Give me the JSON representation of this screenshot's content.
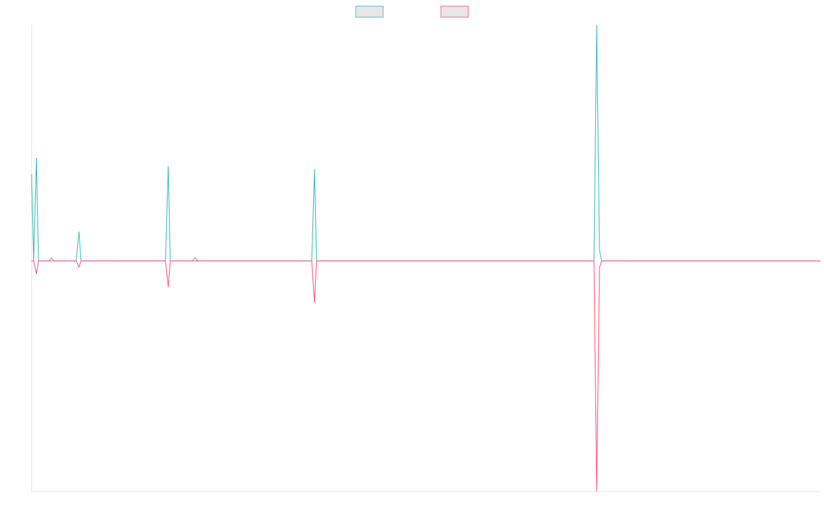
{
  "chart_data": {
    "type": "line",
    "x": [
      0,
      3,
      7,
      10,
      25,
      29,
      33,
      65,
      69,
      72,
      195,
      199,
      202,
      234,
      238,
      242,
      408,
      412,
      415,
      819,
      823,
      827,
      830,
      1149
    ],
    "series": [
      {
        "color": "#4bc0c0",
        "values": [
          126,
          0,
          150,
          0,
          0,
          4,
          0,
          0,
          43,
          0,
          0,
          138,
          0,
          0,
          5,
          0,
          0,
          134,
          0,
          0,
          344,
          17,
          0,
          0
        ]
      },
      {
        "color": "#ff6384",
        "values": [
          0,
          0,
          -19,
          0,
          0,
          0,
          0,
          0,
          -9,
          0,
          0,
          -38,
          0,
          0,
          0,
          0,
          0,
          -61,
          0,
          0,
          -336,
          -10,
          0,
          0
        ]
      }
    ],
    "xlim": [
      0,
      1149
    ],
    "ylim": [
      -336,
      344
    ],
    "legend": "top"
  }
}
